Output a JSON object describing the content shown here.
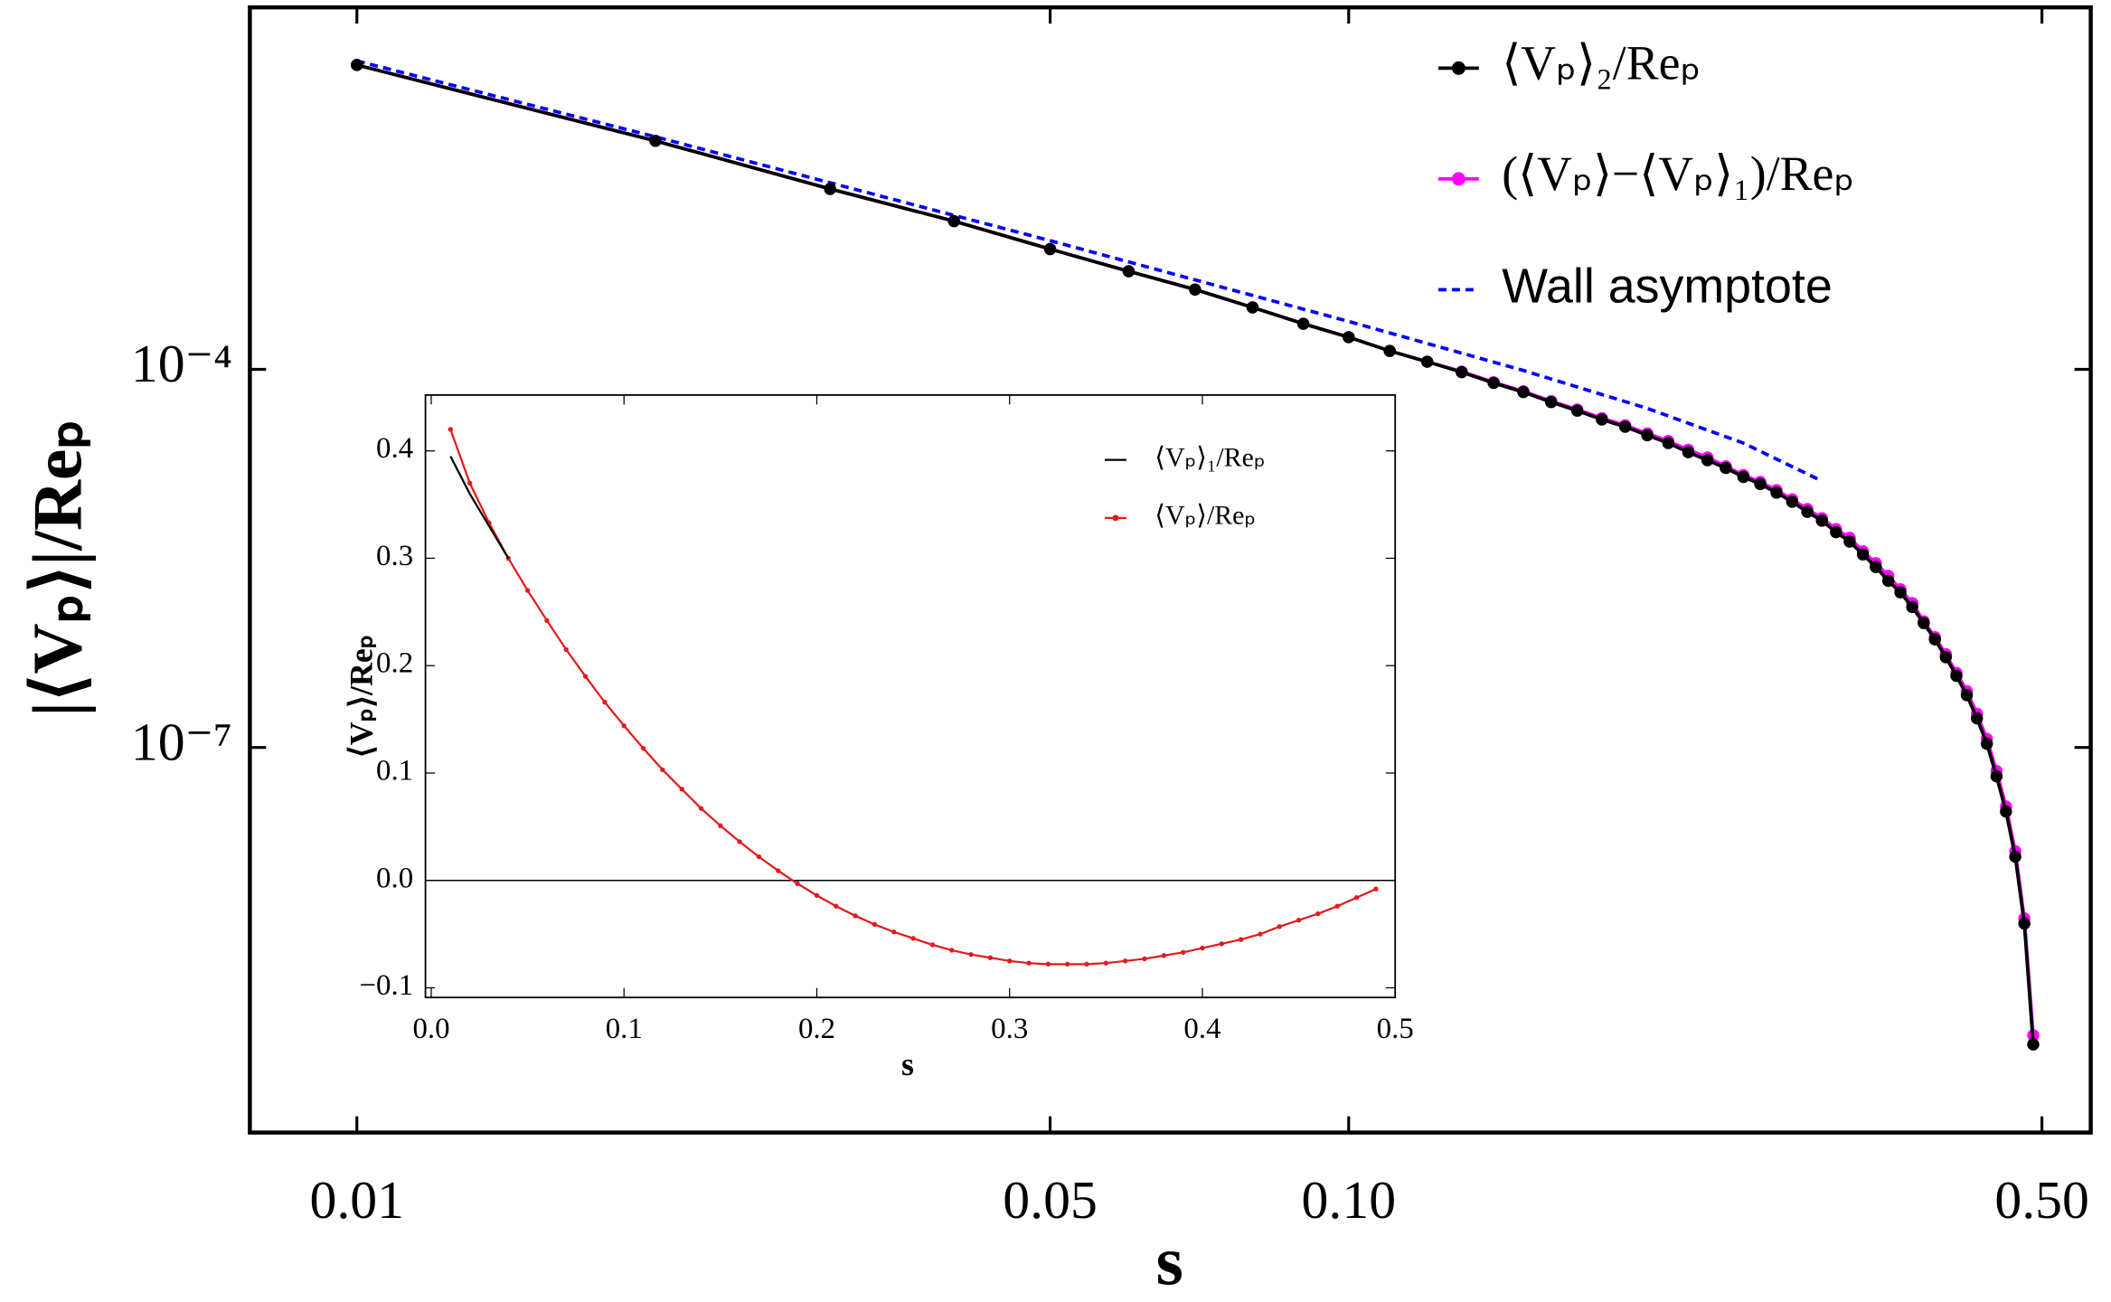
{
  "chart_data": [
    {
      "type": "line",
      "xscale": "log",
      "yscale": "log",
      "xlabel": "s",
      "ylabel": "|⟨Vₚ⟩|/Reₚ",
      "xlim": [
        0.0078,
        0.56
      ],
      "ylim": [
        8.8e-11,
        0.0745
      ],
      "xticks": [
        0.01,
        0.05,
        {
          "value": 0.1,
          "label": "0.10"
        },
        {
          "value": 0.5,
          "label": "0.50"
        }
      ],
      "yticks": [
        {
          "value": 1e-07,
          "label": "10⁻⁷"
        },
        {
          "value": 0.0001,
          "label": "10⁻⁴"
        }
      ],
      "legend": "upper right",
      "series": [
        {
          "name": "⟨Vₚ⟩₂/Reₚ",
          "color": "#000000",
          "marker": "circle",
          "linestyle": "solid",
          "x": [
            0.01,
            0.02,
            0.03,
            0.04,
            0.05,
            0.06,
            0.07,
            0.08,
            0.09,
            0.1,
            0.11,
            0.12,
            0.13,
            0.14,
            0.15,
            0.16,
            0.17,
            0.18,
            0.19,
            0.2,
            0.21,
            0.22,
            0.23,
            0.24,
            0.25,
            0.26,
            0.27,
            0.28,
            0.29,
            0.3,
            0.31,
            0.32,
            0.33,
            0.34,
            0.35,
            0.36,
            0.37,
            0.38,
            0.39,
            0.4,
            0.41,
            0.42,
            0.43,
            0.44,
            0.45,
            0.46,
            0.47,
            0.48,
            0.49
          ],
          "values": [
            0.026,
            0.0065,
            0.0027,
            0.0015,
            0.0009,
            0.0006,
            0.00043,
            0.00031,
            0.00023,
            0.00018,
            0.00014,
            0.000115,
            9.5e-05,
            7.8e-05,
            6.6e-05,
            5.5e-05,
            4.7e-05,
            4e-05,
            3.5e-05,
            3e-05,
            2.6e-05,
            2.2e-05,
            1.9e-05,
            1.65e-05,
            1.4e-05,
            1.23e-05,
            1.05e-05,
            8.9e-06,
            7.4e-06,
            6.3e-06,
            5.1e-06,
            4.3e-06,
            3.4e-06,
            2.7e-06,
            2.1e-06,
            1.7e-06,
            1.3e-06,
            9.7e-07,
            7.2e-07,
            5.2e-07,
            3.7e-07,
            2.6e-07,
            1.7e-07,
            1.07e-07,
            5.9e-08,
            3.1e-08,
            1.36e-08,
            4e-09,
            4.4e-10
          ]
        },
        {
          "name": "(⟨Vₚ⟩−⟨Vₚ⟩₁)/Reₚ",
          "color": "#ff00ff",
          "marker": "circle",
          "linestyle": "solid",
          "x": [
            0.01,
            0.02,
            0.03,
            0.04,
            0.05,
            0.06,
            0.07,
            0.08,
            0.09,
            0.1,
            0.11,
            0.12,
            0.13,
            0.14,
            0.15,
            0.16,
            0.17,
            0.18,
            0.19,
            0.2,
            0.21,
            0.22,
            0.23,
            0.24,
            0.25,
            0.26,
            0.27,
            0.28,
            0.29,
            0.3,
            0.31,
            0.32,
            0.33,
            0.34,
            0.35,
            0.36,
            0.37,
            0.38,
            0.39,
            0.4,
            0.41,
            0.42,
            0.43,
            0.44,
            0.45,
            0.46,
            0.47,
            0.48,
            0.49
          ],
          "values": [
            0.026,
            0.0065,
            0.0027,
            0.0015,
            0.0009,
            0.0006,
            0.00043,
            0.00031,
            0.00023,
            0.00018,
            0.00014,
            0.000115,
            9.6e-05,
            7.9e-05,
            6.7e-05,
            5.6e-05,
            4.8e-05,
            4.1e-05,
            3.6e-05,
            3.1e-05,
            2.7e-05,
            2.3e-05,
            2e-05,
            1.7e-05,
            1.45e-05,
            1.28e-05,
            1.1e-05,
            9.3e-06,
            7.8e-06,
            6.6e-06,
            5.4e-06,
            4.6e-06,
            3.6e-06,
            2.9e-06,
            2.3e-06,
            1.8e-06,
            1.4e-06,
            1e-06,
            7.5e-07,
            5.5e-07,
            3.9e-07,
            2.8e-07,
            1.85e-07,
            1.17e-07,
            6.5e-08,
            3.4e-08,
            1.5e-08,
            4.4e-09,
            5.2e-10
          ]
        },
        {
          "name": "Wall asymptote",
          "color": "#0000ff",
          "marker": "none",
          "linestyle": "dashed",
          "x": [
            0.01,
            0.02,
            0.05,
            0.1,
            0.15,
            0.2,
            0.25,
            0.3
          ],
          "values": [
            0.028,
            0.007,
            0.00105,
            0.00024,
            9.8e-05,
            4.9e-05,
            2.6e-05,
            1.3e-05
          ]
        }
      ]
    },
    {
      "type": "line",
      "xlabel": "s",
      "ylabel": "⟨Vₚ⟩/Reₚ",
      "xlim": [
        -0.003,
        0.5
      ],
      "ylim": [
        -0.109,
        0.452
      ],
      "xticks": [
        {
          "value": 0,
          "label": "0.0"
        },
        0.1,
        0.2,
        0.3,
        0.4,
        0.5
      ],
      "yticks": [
        {
          "value": -0.1,
          "label": "−0.1"
        },
        {
          "value": 0,
          "label": "0.0"
        },
        0.1,
        0.2,
        0.3,
        0.4
      ],
      "legend": "upper right",
      "series": [
        {
          "name": "⟨Vₚ⟩₁/Reₚ",
          "color": "#000000",
          "marker": "none",
          "linestyle": "solid",
          "x": [
            0.01,
            0.02,
            0.03,
            0.04
          ],
          "values": [
            0.395,
            0.36,
            0.33,
            0.3
          ]
        },
        {
          "name": "⟨Vₚ⟩/Reₚ",
          "color": "#e41a1c",
          "marker": "circle",
          "linestyle": "solid",
          "x": [
            0.01,
            0.02,
            0.03,
            0.04,
            0.05,
            0.06,
            0.07,
            0.08,
            0.09,
            0.1,
            0.11,
            0.12,
            0.13,
            0.14,
            0.15,
            0.16,
            0.17,
            0.18,
            0.19,
            0.2,
            0.21,
            0.22,
            0.23,
            0.24,
            0.25,
            0.26,
            0.27,
            0.28,
            0.29,
            0.3,
            0.31,
            0.32,
            0.33,
            0.34,
            0.35,
            0.36,
            0.37,
            0.38,
            0.39,
            0.4,
            0.41,
            0.42,
            0.43,
            0.44,
            0.45,
            0.46,
            0.47,
            0.48,
            0.49
          ],
          "values": [
            0.42,
            0.37,
            0.333,
            0.3,
            0.27,
            0.242,
            0.215,
            0.19,
            0.166,
            0.144,
            0.123,
            0.103,
            0.085,
            0.067,
            0.051,
            0.036,
            0.022,
            0.009,
            -0.003,
            -0.014,
            -0.024,
            -0.033,
            -0.041,
            -0.048,
            -0.054,
            -0.06,
            -0.065,
            -0.069,
            -0.072,
            -0.075,
            -0.077,
            -0.078,
            -0.078,
            -0.078,
            -0.077,
            -0.075,
            -0.073,
            -0.07,
            -0.067,
            -0.063,
            -0.059,
            -0.055,
            -0.05,
            -0.043,
            -0.037,
            -0.031,
            -0.024,
            -0.016,
            -0.008
          ]
        }
      ]
    }
  ]
}
